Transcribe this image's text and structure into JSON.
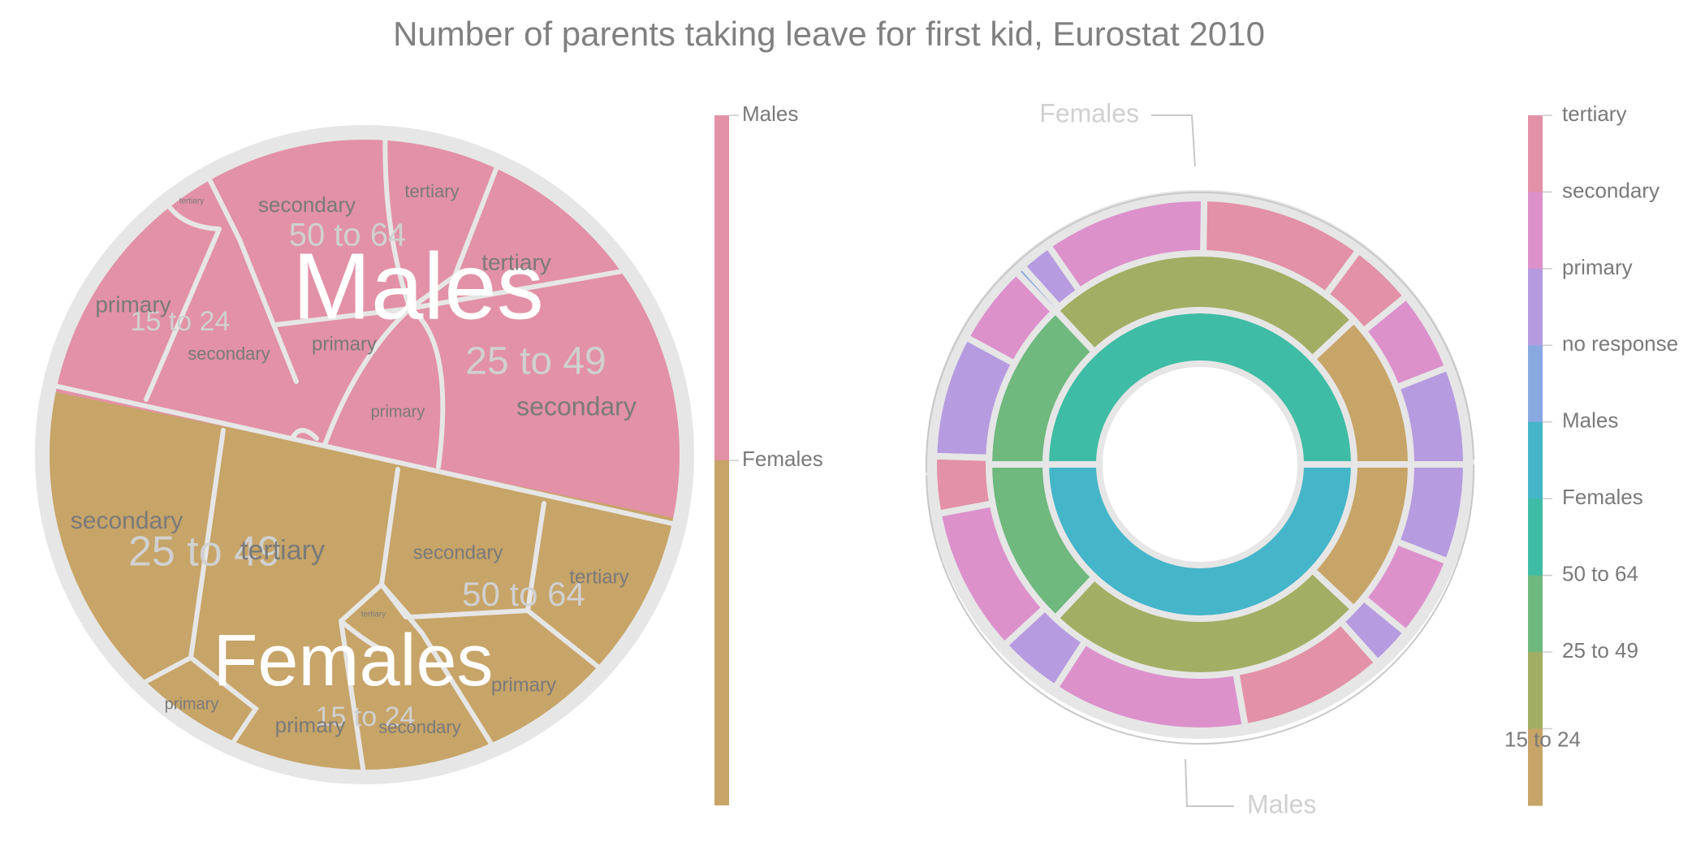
{
  "title": "Number of parents taking leave for first kid, Eurostat 2010",
  "colors": {
    "Males": "#e291a6",
    "Females": "#c7a468",
    "tertiary": "#e291a6",
    "secondary": "#dc91cb",
    "primary": "#b69be0",
    "no response": "#88a8e0",
    "Males_ring": "#45b5c9",
    "Females_ring": "#3fbca6",
    "50 to 64": "#3fbca6",
    "25 to 49": "#6fb87e",
    "15 to 24": "#a2ae63",
    "ring_15_24_left": "#c7a468",
    "border": "#e6e6e6",
    "label_dark": "#7a7a7a",
    "label_light": "#d0d0d0"
  },
  "chart_data": [
    {
      "type": "treemap",
      "hierarchy": [
        "sex",
        "age",
        "education"
      ],
      "legend": {
        "type": "continuous-categorical",
        "entries": [
          "Males",
          "Females"
        ]
      },
      "tree": [
        {
          "name": "Males",
          "children": [
            {
              "name": "50 to 64",
              "children": [
                {
                  "name": "secondary"
                },
                {
                  "name": "tertiary"
                },
                {
                  "name": "primary"
                }
              ]
            },
            {
              "name": "15 to 24",
              "children": [
                {
                  "name": "tertiary"
                },
                {
                  "name": "primary"
                },
                {
                  "name": "secondary"
                }
              ]
            },
            {
              "name": "25 to 49",
              "children": [
                {
                  "name": "tertiary"
                },
                {
                  "name": "primary"
                },
                {
                  "name": "secondary"
                }
              ]
            }
          ]
        },
        {
          "name": "Females",
          "children": [
            {
              "name": "25 to 49",
              "children": [
                {
                  "name": "secondary"
                },
                {
                  "name": "tertiary"
                },
                {
                  "name": "primary"
                }
              ]
            },
            {
              "name": "50 to 64",
              "children": [
                {
                  "name": "secondary"
                },
                {
                  "name": "tertiary"
                },
                {
                  "name": "primary"
                }
              ]
            },
            {
              "name": "15 to 24",
              "children": [
                {
                  "name": "tertiary"
                },
                {
                  "name": "primary"
                },
                {
                  "name": "secondary"
                }
              ]
            }
          ]
        }
      ]
    },
    {
      "type": "sunburst",
      "annotations": [
        "Females",
        "Males"
      ],
      "legend": {
        "entries": [
          "tertiary",
          "secondary",
          "primary",
          "no response",
          "Males",
          "Females",
          "50 to 64",
          "25 to 49",
          "15 to 24"
        ]
      },
      "rings": {
        "sex": [
          {
            "name": "Females",
            "value": 50
          },
          {
            "name": "Males",
            "value": 50
          }
        ],
        "age": [
          {
            "parent": "Females",
            "name": "50 to 64",
            "value": 12
          },
          {
            "parent": "Females",
            "name": "15 to 24",
            "value": 25
          },
          {
            "parent": "Females",
            "name": "25 to 49",
            "value": 13
          },
          {
            "parent": "Males",
            "name": "25 to 49",
            "value": 13
          },
          {
            "parent": "Males",
            "name": "15 to 24",
            "value": 25
          },
          {
            "parent": "Males",
            "name": "50 to 64",
            "value": 12
          }
        ],
        "education": [
          {
            "name": "primary",
            "value": 6
          },
          {
            "name": "secondary",
            "value": 5
          },
          {
            "name": "tertiary",
            "value": 4
          },
          {
            "name": "tertiary",
            "value": 10
          },
          {
            "name": "secondary",
            "value": 10
          },
          {
            "name": "primary",
            "value": 2
          },
          {
            "name": "no response",
            "value": 0.5
          },
          {
            "name": "secondary",
            "value": 5
          },
          {
            "name": "primary",
            "value": 7.5
          },
          {
            "name": "tertiary",
            "value": 3.5
          },
          {
            "name": "secondary",
            "value": 9
          },
          {
            "name": "primary",
            "value": 4
          },
          {
            "name": "secondary",
            "value": 12
          },
          {
            "name": "tertiary",
            "value": 9
          },
          {
            "name": "primary",
            "value": 2.5
          },
          {
            "name": "secondary",
            "value": 5
          },
          {
            "name": "primary",
            "value": 6
          }
        ]
      }
    }
  ]
}
